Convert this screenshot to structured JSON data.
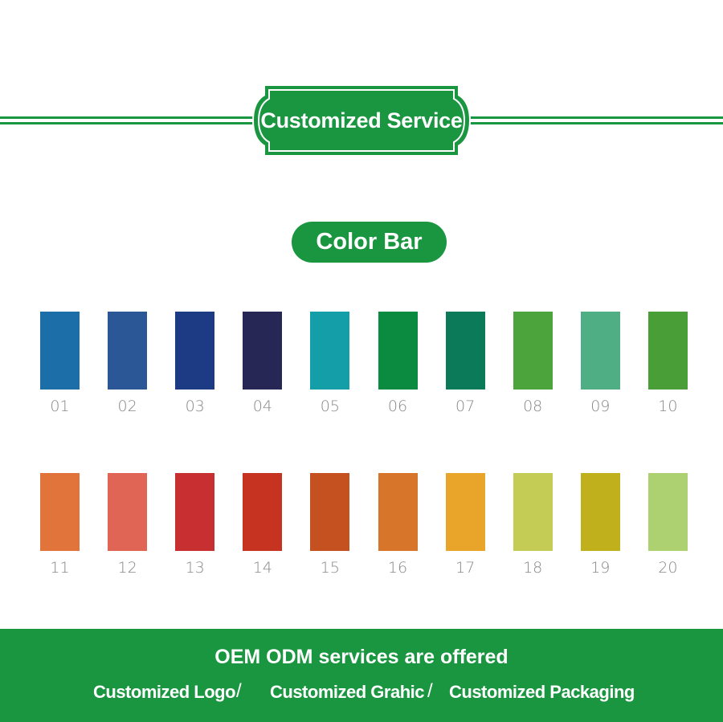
{
  "header": {
    "title": "Customized Service",
    "accent": "#1a9641"
  },
  "section": {
    "title": "Color Bar"
  },
  "swatches": [
    {
      "label": "01",
      "color": "#1b6ea8"
    },
    {
      "label": "02",
      "color": "#2b5797"
    },
    {
      "label": "03",
      "color": "#1d3a84"
    },
    {
      "label": "04",
      "color": "#262754"
    },
    {
      "label": "05",
      "color": "#149ea8"
    },
    {
      "label": "06",
      "color": "#0a8b3f"
    },
    {
      "label": "07",
      "color": "#0a7a58"
    },
    {
      "label": "08",
      "color": "#4ca43c"
    },
    {
      "label": "09",
      "color": "#4fae84"
    },
    {
      "label": "10",
      "color": "#4a9e38"
    },
    {
      "label": "11",
      "color": "#e0743a"
    },
    {
      "label": "12",
      "color": "#e06555"
    },
    {
      "label": "13",
      "color": "#c82f30"
    },
    {
      "label": "14",
      "color": "#c63320"
    },
    {
      "label": "15",
      "color": "#c55020"
    },
    {
      "label": "16",
      "color": "#d7762a"
    },
    {
      "label": "17",
      "color": "#e8a52a"
    },
    {
      "label": "18",
      "color": "#c4cc55"
    },
    {
      "label": "19",
      "color": "#bfb01c"
    },
    {
      "label": "20",
      "color": "#add070"
    }
  ],
  "footer": {
    "headline": "OEM ODM services are offered",
    "items": [
      "Customized Logo",
      "Customized Grahic",
      "Customized Packaging"
    ],
    "separator": "/"
  }
}
